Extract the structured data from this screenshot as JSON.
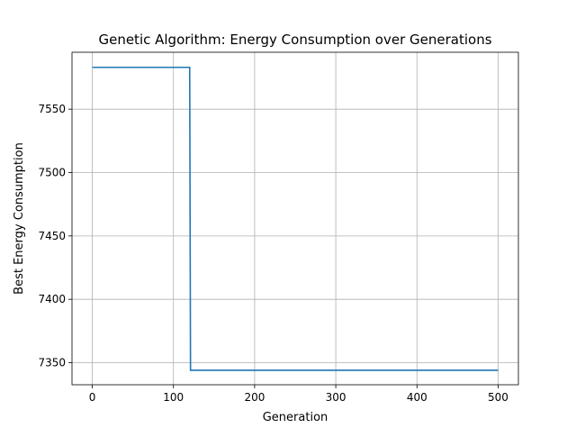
{
  "chart_data": {
    "type": "line",
    "title": "Genetic Algorithm: Energy Consumption over Generations",
    "xlabel": "Generation",
    "ylabel": "Best Energy Consumption",
    "xlim": [
      -25,
      525
    ],
    "ylim": [
      7332.6,
      7594.9
    ],
    "x_ticks": [
      0,
      100,
      200,
      300,
      400,
      500
    ],
    "y_ticks": [
      7350,
      7400,
      7450,
      7500,
      7550
    ],
    "grid": true,
    "series": [
      {
        "color": "#1f77b4",
        "points": [
          [
            0,
            7583
          ],
          [
            120,
            7583
          ],
          [
            121,
            7344
          ],
          [
            500,
            7344
          ]
        ]
      }
    ]
  }
}
